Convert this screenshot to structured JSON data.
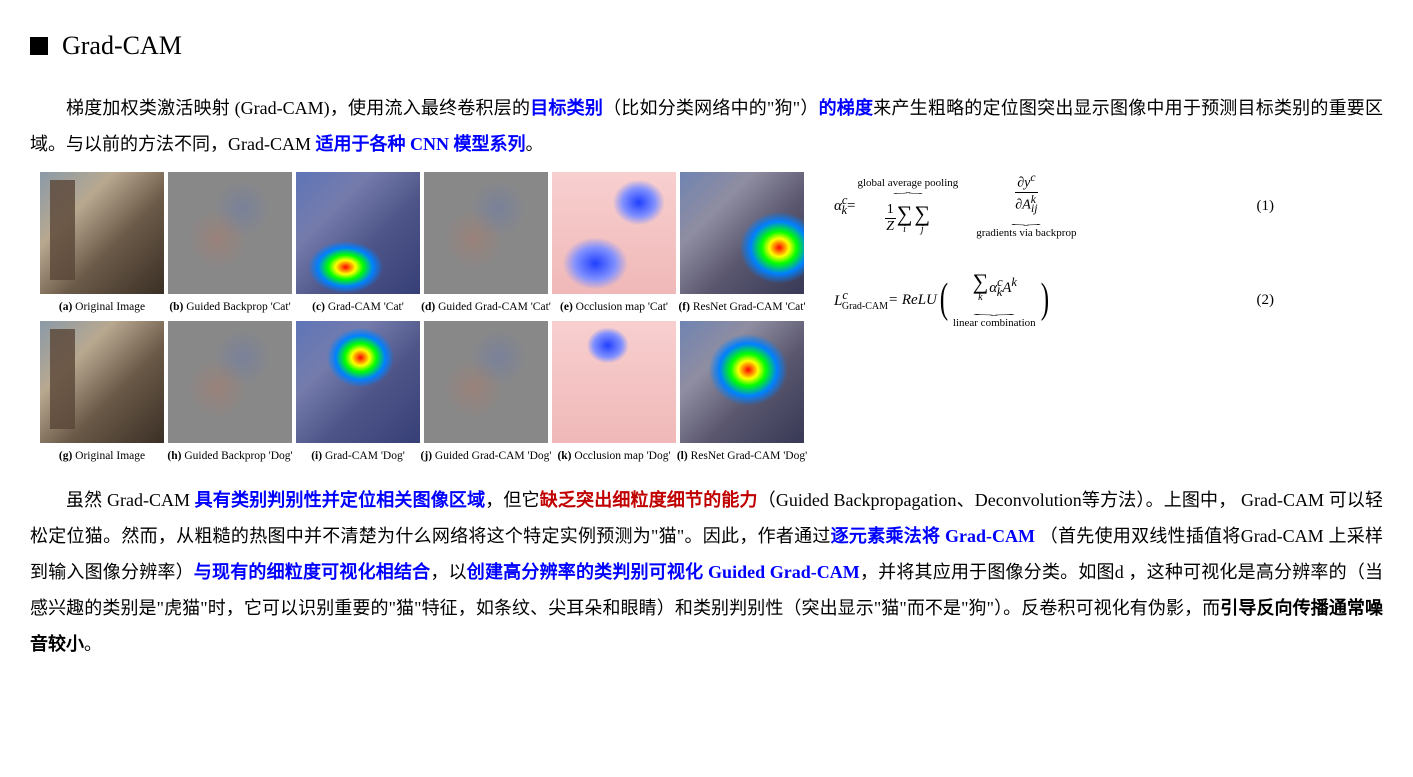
{
  "heading": "Grad-CAM",
  "para1": {
    "t1": "梯度加权类激活映射 (Grad-CAM)，使用流入最终卷积层的",
    "blue1": "目标类别",
    "t2": "（比如分类网络中的\"狗\"）",
    "blue2": "的梯度",
    "t3": "来产生粗略的定位图突出显示图像中用于预测目标类别的重要区域。与以前的方法不同，Grad-CAM ",
    "blue3": "适用于各种 CNN 模型系列",
    "t4": "。"
  },
  "panels": [
    {
      "id": "a",
      "label": "Original Image",
      "type": "orig"
    },
    {
      "id": "b",
      "label": "Guided Backprop 'Cat'",
      "type": "gray noise"
    },
    {
      "id": "c",
      "label": "Grad-CAM 'Cat'",
      "type": "heatmap-cat"
    },
    {
      "id": "d",
      "label": "Guided Grad-CAM 'Cat'",
      "type": "gray noise"
    },
    {
      "id": "e",
      "label": "Occlusion map 'Cat'",
      "type": "occlusion-cat"
    },
    {
      "id": "f",
      "label": "ResNet Grad-CAM 'Cat'",
      "type": "resnet-cat"
    },
    {
      "id": "g",
      "label": "Original Image",
      "type": "orig"
    },
    {
      "id": "h",
      "label": "Guided Backprop 'Dog'",
      "type": "gray noise"
    },
    {
      "id": "i",
      "label": "Grad-CAM 'Dog'",
      "type": "heatmap-cat heatmap-dog"
    },
    {
      "id": "j",
      "label": "Guided Grad-CAM 'Dog'",
      "type": "gray noise"
    },
    {
      "id": "k",
      "label": "Occlusion map 'Dog'",
      "type": "occlusion-dog"
    },
    {
      "id": "l",
      "label": "ResNet Grad-CAM 'Dog'",
      "type": "resnet-cat resnet-dog"
    }
  ],
  "eq1": {
    "lhs": "α",
    "lhs_sup": "c",
    "lhs_sub": "k",
    "eq": " = ",
    "over_label": "global average pooling",
    "frac_num": "1",
    "frac_den": "Z",
    "sum1_sub": "i",
    "sum2_sub": "j",
    "partial_num": "∂y",
    "partial_num_sup": "c",
    "partial_den": "∂A",
    "partial_den_sup": "k",
    "partial_den_sub": "ij",
    "under_label": "gradients via backprop",
    "num": "(1)"
  },
  "eq2": {
    "lhs": "L",
    "lhs_sup": "c",
    "lhs_sub": "Grad-CAM",
    "eq": " = ReLU ",
    "sum_sub": "k",
    "term": "α",
    "term_sup": "c",
    "term_sub": "k",
    "term2": "A",
    "term2_sup": "k",
    "under_label": "linear combination",
    "num": "(2)"
  },
  "para2": {
    "t1": "虽然 Grad-CAM ",
    "blue1": "具有类别判别性并定位相关图像区域",
    "t2": "，但它",
    "red1": "缺乏突出细粒度细节的能力",
    "t3": "（Guided Backpropagation、Deconvolution等方法）。上图中， Grad-CAM 可以轻松定位猫。然而，从粗糙的热图中并不清楚为什么网络将这个特定实例预测为\"猫\"。因此，作者通过",
    "blue2": "逐元素乘法将 Grad-CAM ",
    "t4": "（首先使用双线性插值将Grad-CAM 上采样到输入图像分辨率）",
    "blue3": "与现有的细粒度可视化相结合",
    "t5": "，以",
    "blue4": "创建高分辨率的类判别可视化 Guided Grad-CAM",
    "t6": "，并将其应用于图像分类。如图d ，这种可视化是高分辨率的（当感兴趣的类别是\"虎猫\"时，它可以识别重要的\"猫\"特征，如条纹、尖耳朵和眼睛）和类别判别性（突出显示\"猫\"而不是\"狗\"）。反卷积可视化有伪影，而",
    "bold1": "引导反向传播通常噪音较小",
    "t7": "。"
  }
}
